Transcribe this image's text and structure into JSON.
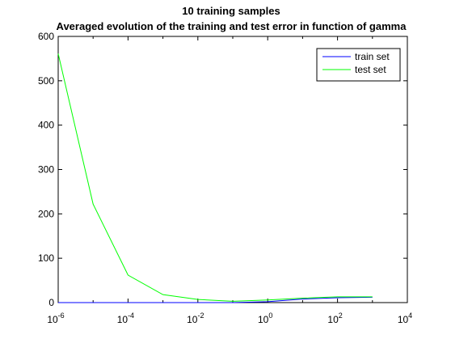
{
  "chart_data": {
    "type": "line",
    "title": "10 training samples",
    "subtitle": "Averaged evolution of the training and test error in function of gamma",
    "xlabel": "",
    "ylabel": "",
    "xscale": "log",
    "xlim": [
      1e-06,
      10000
    ],
    "ylim": [
      0,
      600
    ],
    "x": [
      1e-06,
      1e-05,
      0.0001,
      0.001,
      0.01,
      0.1,
      1,
      10,
      100,
      1000
    ],
    "series": [
      {
        "name": "train set",
        "color": "#0000ff",
        "values": [
          0,
          0,
          0,
          0,
          0,
          0,
          2,
          8,
          11,
          12
        ]
      },
      {
        "name": "test set",
        "color": "#00ff00",
        "values": [
          561,
          222,
          62,
          18,
          7,
          3,
          6,
          10,
          13,
          13
        ]
      }
    ],
    "x_ticks": [
      {
        "base": "10",
        "exp": "-6",
        "value": 1e-06
      },
      {
        "base": "10",
        "exp": "-4",
        "value": 0.0001
      },
      {
        "base": "10",
        "exp": "-2",
        "value": 0.01
      },
      {
        "base": "10",
        "exp": "0",
        "value": 1
      },
      {
        "base": "10",
        "exp": "2",
        "value": 100
      },
      {
        "base": "10",
        "exp": "4",
        "value": 10000
      }
    ],
    "y_ticks": [
      "0",
      "100",
      "200",
      "300",
      "400",
      "500",
      "600"
    ],
    "grid": false,
    "legend_position": "top-right"
  }
}
